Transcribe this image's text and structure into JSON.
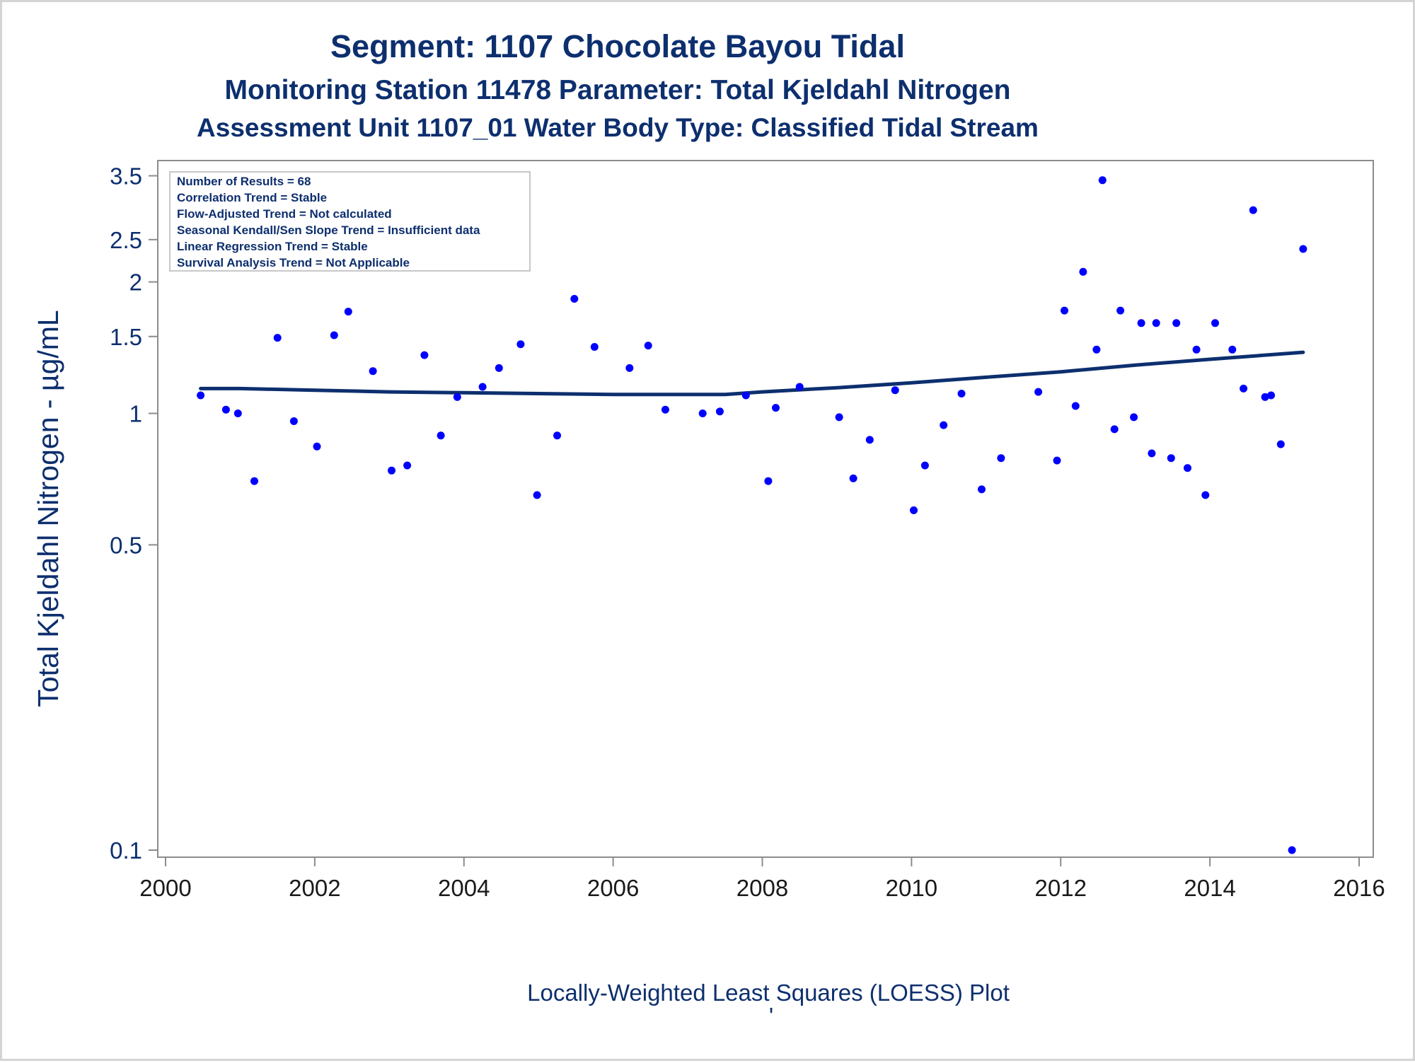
{
  "chart_data": {
    "type": "scatter",
    "titles": [
      "Segment: 1107  Chocolate Bayou Tidal",
      "Monitoring Station 11478 Parameter: Total Kjeldahl Nitrogen",
      "Assessment Unit 1107_01   Water Body Type: Classified Tidal Stream"
    ],
    "ylabel": "Total Kjeldahl Nitrogen -  µg/mL",
    "xlabel": "Locally-Weighted Least Squares (LOESS) Plot",
    "footnote": "'",
    "y_scale": "log",
    "xlim": [
      2000,
      2016
    ],
    "ylim": [
      0.1,
      3.6
    ],
    "x_ticks": [
      2000,
      2002,
      2004,
      2006,
      2008,
      2010,
      2012,
      2014,
      2016
    ],
    "x_tick_labels": [
      "2000",
      "2002",
      "2004",
      "2006",
      "2008",
      "2010",
      "2012",
      "2014",
      "2016"
    ],
    "y_ticks": [
      0.1,
      0.5,
      1,
      1.5,
      2,
      2.5,
      3.5
    ],
    "y_tick_labels": [
      "0.1",
      "0.5",
      "1",
      "1.5",
      "2",
      "2.5",
      "3.5"
    ],
    "grid": false,
    "legend_position": "top-left",
    "annotation_lines": [
      "Number of Results = 68",
      "Correlation Trend = Stable",
      "Flow-Adjusted Trend = Not calculated",
      "Seasonal Kendall/Sen Slope Trend = Insufficient data",
      "Linear Regression Trend = Stable",
      "Survival Analysis Trend = Not Applicable"
    ],
    "colors": {
      "points": "#0000ff",
      "loess_line": "#0d2f6e",
      "text": "#0d2f6e",
      "axis": "#8c8c8c",
      "tick_label": "#1a1a1a"
    },
    "series": [
      {
        "type": "scatter",
        "points": [
          [
            2000.47,
            1.1
          ],
          [
            2000.81,
            1.02
          ],
          [
            2000.97,
            1.0
          ],
          [
            2001.19,
            0.7
          ],
          [
            2001.5,
            1.49
          ],
          [
            2001.72,
            0.96
          ],
          [
            2002.03,
            0.84
          ],
          [
            2002.26,
            1.51
          ],
          [
            2002.45,
            1.71
          ],
          [
            2002.78,
            1.25
          ],
          [
            2003.03,
            0.74
          ],
          [
            2003.24,
            0.76
          ],
          [
            2003.47,
            1.36
          ],
          [
            2003.69,
            0.89
          ],
          [
            2003.91,
            1.09
          ],
          [
            2004.25,
            1.15
          ],
          [
            2004.47,
            1.27
          ],
          [
            2004.76,
            1.44
          ],
          [
            2004.98,
            0.65
          ],
          [
            2005.25,
            0.89
          ],
          [
            2005.48,
            1.83
          ],
          [
            2005.75,
            1.42
          ],
          [
            2006.22,
            1.27
          ],
          [
            2006.47,
            1.43
          ],
          [
            2006.7,
            1.02
          ],
          [
            2007.2,
            1.0
          ],
          [
            2007.43,
            1.01
          ],
          [
            2007.78,
            1.1
          ],
          [
            2008.08,
            0.7
          ],
          [
            2008.18,
            1.03
          ],
          [
            2008.5,
            1.15
          ],
          [
            2009.03,
            0.98
          ],
          [
            2009.22,
            0.71
          ],
          [
            2009.44,
            0.87
          ],
          [
            2009.78,
            1.13
          ],
          [
            2010.03,
            0.6
          ],
          [
            2010.18,
            0.76
          ],
          [
            2010.43,
            0.94
          ],
          [
            2010.67,
            1.11
          ],
          [
            2010.94,
            0.67
          ],
          [
            2011.2,
            0.79
          ],
          [
            2011.7,
            1.12
          ],
          [
            2011.95,
            0.78
          ],
          [
            2012.05,
            1.72
          ],
          [
            2012.2,
            1.04
          ],
          [
            2012.3,
            2.11
          ],
          [
            2012.48,
            1.4
          ],
          [
            2012.56,
            3.42
          ],
          [
            2012.72,
            0.92
          ],
          [
            2012.8,
            1.72
          ],
          [
            2012.98,
            0.98
          ],
          [
            2013.08,
            1.61
          ],
          [
            2013.22,
            0.81
          ],
          [
            2013.28,
            1.61
          ],
          [
            2013.48,
            0.79
          ],
          [
            2013.55,
            1.61
          ],
          [
            2013.7,
            0.75
          ],
          [
            2013.82,
            1.4
          ],
          [
            2013.94,
            0.65
          ],
          [
            2014.07,
            1.61
          ],
          [
            2014.3,
            1.4
          ],
          [
            2014.45,
            1.14
          ],
          [
            2014.58,
            2.92
          ],
          [
            2014.74,
            1.09
          ],
          [
            2014.82,
            1.1
          ],
          [
            2014.95,
            0.85
          ],
          [
            2015.1,
            0.1
          ],
          [
            2015.25,
            2.38
          ]
        ]
      },
      {
        "type": "line",
        "points": [
          [
            2000.47,
            1.14
          ],
          [
            2001.0,
            1.14
          ],
          [
            2002.0,
            1.13
          ],
          [
            2003.0,
            1.12
          ],
          [
            2004.0,
            1.115
          ],
          [
            2005.0,
            1.11
          ],
          [
            2006.0,
            1.105
          ],
          [
            2007.0,
            1.105
          ],
          [
            2007.5,
            1.105
          ],
          [
            2008.0,
            1.12
          ],
          [
            2009.0,
            1.145
          ],
          [
            2010.0,
            1.175
          ],
          [
            2011.0,
            1.21
          ],
          [
            2012.0,
            1.245
          ],
          [
            2013.0,
            1.29
          ],
          [
            2014.0,
            1.33
          ],
          [
            2015.25,
            1.38
          ]
        ]
      }
    ]
  }
}
